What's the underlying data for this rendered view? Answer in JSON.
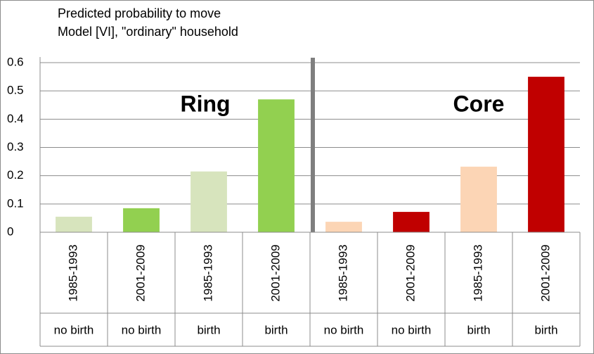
{
  "chart_data": {
    "type": "bar",
    "title": "Predicted probability to move",
    "subtitle": "Model [VI], \"ordinary\" household",
    "categories": [
      "1985-1993",
      "2001-2009",
      "1985-1993",
      "2001-2009",
      "1985-1993",
      "2001-2009",
      "1985-1993",
      "2001-2009"
    ],
    "groups": [
      "no birth",
      "no birth",
      "birth",
      "birth",
      "no birth",
      "no birth",
      "birth",
      "birth"
    ],
    "values": [
      0.055,
      0.085,
      0.215,
      0.47,
      0.037,
      0.072,
      0.232,
      0.55
    ],
    "colors": [
      "#d7e4bd",
      "#92d050",
      "#d7e4bd",
      "#92d050",
      "#fcd5b5",
      "#c00000",
      "#fcd5b5",
      "#c00000"
    ],
    "annotations": [
      "Ring",
      "Core"
    ],
    "ylim": [
      0,
      0.6
    ],
    "yticks": [
      0,
      0.1,
      0.2,
      0.3,
      0.4,
      0.5,
      0.6
    ],
    "grid": true
  }
}
